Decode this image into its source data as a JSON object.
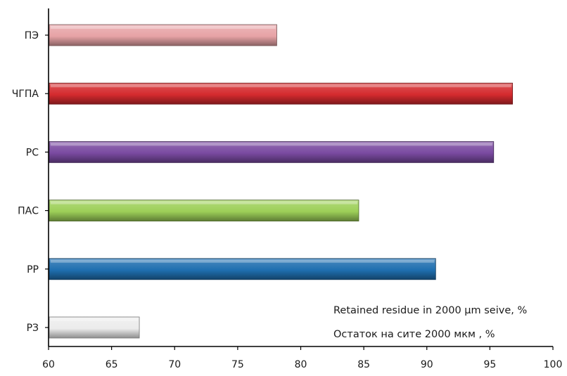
{
  "chart_data": {
    "type": "bar",
    "orientation": "horizontal",
    "categories": [
      "ПЭ",
      "ЧГПА",
      "РС",
      "ПАС",
      "РР",
      "РЗ"
    ],
    "values": [
      78.1,
      96.8,
      95.3,
      84.6,
      90.7,
      67.2
    ],
    "colors": [
      "#e7a3a6",
      "#d42a2e",
      "#7a4aa1",
      "#9dcf58",
      "#1f6fb0",
      "#ececec"
    ],
    "xlim": [
      60,
      100
    ],
    "xticks": [
      "60",
      "65",
      "70",
      "75",
      "80",
      "85",
      "90",
      "95",
      "100"
    ],
    "grid": false,
    "annotations": [
      "Retained residue in 2000 µm seive, %",
      "Остаток на сите 2000 мкм , %"
    ]
  }
}
